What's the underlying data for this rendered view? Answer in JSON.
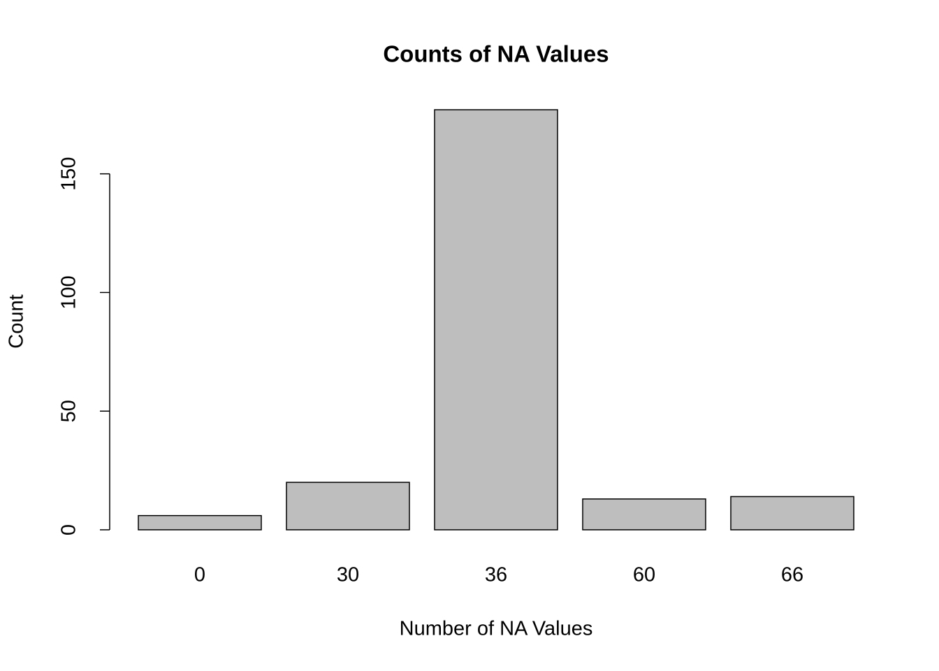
{
  "chart_data": {
    "type": "bar",
    "title": "Counts of NA Values",
    "x_label": "Number of NA Values",
    "y_label": "Count",
    "categories": [
      "0",
      "30",
      "36",
      "60",
      "66"
    ],
    "values": [
      6,
      20,
      177,
      13,
      14
    ],
    "color": "#bebebe",
    "ylim": [
      0,
      177
    ],
    "yticks": [
      0,
      50,
      100,
      150
    ],
    "grid": false
  }
}
